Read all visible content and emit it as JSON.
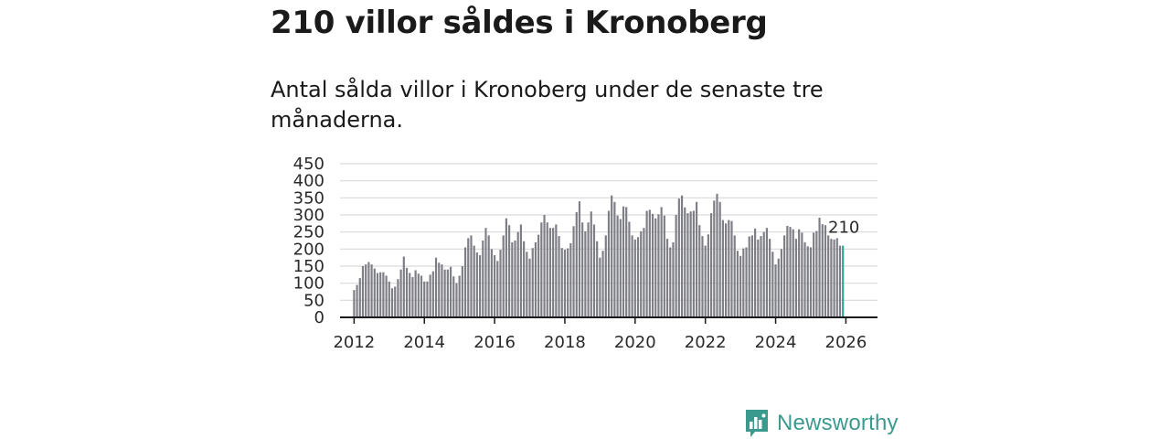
{
  "title": "210 villor såldes i Kronoberg",
  "subtitle": "Antal sålda villor i Kronoberg under de senaste tre månaderna.",
  "brand": {
    "name": "Newsworthy",
    "color": "#3a9a8e"
  },
  "colors": {
    "bar": "#7e7e86",
    "highlight": "#2fa59a",
    "grid": "#d9d9d9",
    "axis": "#1a1a1a"
  },
  "chart_data": {
    "type": "bar",
    "title": "210 villor såldes i Kronoberg",
    "xlabel": "",
    "ylabel": "",
    "ylim": [
      0,
      450
    ],
    "xlim": [
      2011.6,
      2026.9
    ],
    "yticks": [
      0,
      50,
      100,
      150,
      200,
      250,
      300,
      350,
      400,
      450
    ],
    "xticks": [
      2012,
      2014,
      2016,
      2018,
      2020,
      2022,
      2024,
      2026
    ],
    "grid": true,
    "legend": "none",
    "x_start": 2012.0,
    "x_step": 0.08333,
    "annotation": {
      "label": "210",
      "value": 210
    },
    "values": [
      80,
      95,
      115,
      150,
      155,
      162,
      155,
      143,
      130,
      132,
      132,
      122,
      105,
      85,
      90,
      112,
      140,
      178,
      145,
      130,
      118,
      138,
      128,
      122,
      105,
      105,
      125,
      135,
      175,
      160,
      155,
      140,
      140,
      148,
      120,
      100,
      122,
      150,
      205,
      232,
      240,
      210,
      190,
      182,
      225,
      262,
      240,
      200,
      182,
      165,
      198,
      240,
      290,
      270,
      220,
      225,
      250,
      272,
      223,
      192,
      172,
      203,
      220,
      242,
      278,
      300,
      278,
      262,
      262,
      272,
      238,
      203,
      198,
      202,
      217,
      267,
      308,
      340,
      278,
      252,
      278,
      310,
      272,
      223,
      175,
      195,
      240,
      312,
      357,
      338,
      298,
      288,
      325,
      323,
      280,
      240,
      228,
      235,
      252,
      262,
      312,
      315,
      303,
      290,
      302,
      323,
      298,
      230,
      205,
      220,
      300,
      348,
      357,
      322,
      305,
      310,
      312,
      338,
      270,
      238,
      210,
      243,
      305,
      342,
      362,
      338,
      285,
      275,
      285,
      282,
      240,
      195,
      180,
      202,
      205,
      237,
      240,
      260,
      228,
      238,
      250,
      262,
      230,
      192,
      155,
      172,
      200,
      240,
      268,
      265,
      258,
      230,
      258,
      248,
      220,
      208,
      205,
      248,
      253,
      292,
      273,
      270,
      240,
      230,
      228,
      232,
      210,
      210
    ]
  }
}
